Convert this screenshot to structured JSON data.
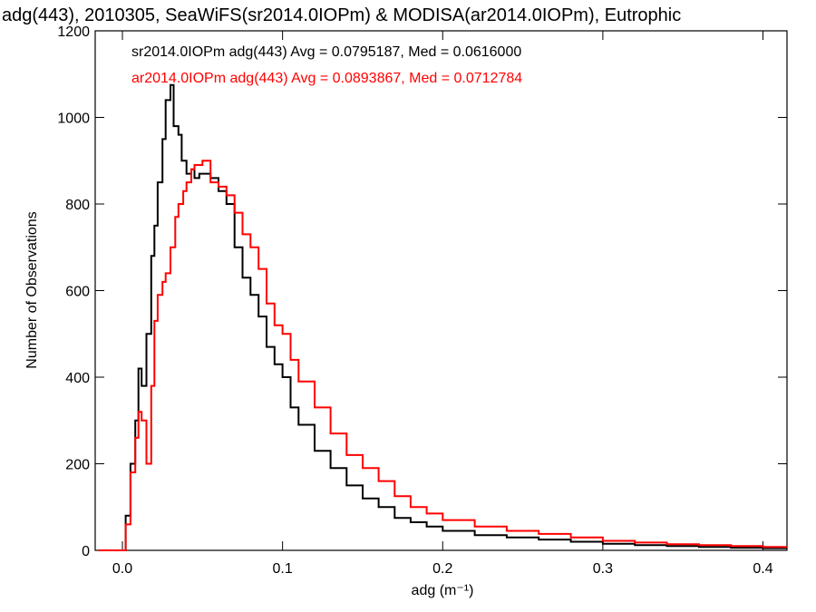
{
  "chart_data": {
    "type": "line",
    "title": "adg(443), 2010305, SeaWiFS(sr2014.0IOPm) & MODISA(ar2014.0IOPm), Eutrophic",
    "xlabel": "adg (m⁻¹)",
    "ylabel": "Number of Observations",
    "xlim": [
      -0.017,
      0.415
    ],
    "ylim": [
      0,
      1200
    ],
    "xticks": [
      0.0,
      0.1,
      0.2,
      0.3,
      0.4
    ],
    "xtick_labels": [
      "0.0",
      "0.1",
      "0.2",
      "0.3",
      "0.4"
    ],
    "yticks": [
      0,
      200,
      400,
      600,
      800,
      1000,
      1200
    ],
    "ytick_labels": [
      "0",
      "200",
      "400",
      "600",
      "800",
      "1000",
      "1200"
    ],
    "grid": false,
    "series": [
      {
        "name": "sr2014.0IOPm adg(443) Avg = 0.0795187, Med = 0.0616000",
        "color": "#000000",
        "x": [
          -0.015,
          0.0,
          0.002,
          0.005,
          0.008,
          0.01,
          0.012,
          0.015,
          0.018,
          0.02,
          0.022,
          0.025,
          0.027,
          0.03,
          0.032,
          0.035,
          0.037,
          0.04,
          0.043,
          0.045,
          0.048,
          0.05,
          0.055,
          0.06,
          0.065,
          0.07,
          0.075,
          0.08,
          0.085,
          0.09,
          0.095,
          0.1,
          0.105,
          0.11,
          0.12,
          0.13,
          0.14,
          0.15,
          0.16,
          0.17,
          0.18,
          0.19,
          0.2,
          0.22,
          0.24,
          0.26,
          0.28,
          0.3,
          0.32,
          0.34,
          0.36,
          0.38,
          0.4,
          0.415
        ],
        "values": [
          0,
          0,
          80,
          200,
          300,
          420,
          380,
          500,
          680,
          750,
          850,
          950,
          1040,
          1075,
          980,
          960,
          900,
          870,
          880,
          860,
          870,
          870,
          860,
          830,
          800,
          700,
          630,
          590,
          540,
          470,
          430,
          400,
          330,
          290,
          230,
          190,
          150,
          120,
          100,
          75,
          65,
          55,
          45,
          35,
          30,
          25,
          20,
          15,
          12,
          10,
          8,
          6,
          5,
          5
        ]
      },
      {
        "name": "ar2014.0IOPm adg(443) Avg = 0.0893867, Med = 0.0712784",
        "color": "#ff0000",
        "x": [
          -0.015,
          0.0,
          0.002,
          0.005,
          0.008,
          0.01,
          0.012,
          0.015,
          0.018,
          0.02,
          0.022,
          0.025,
          0.027,
          0.03,
          0.033,
          0.035,
          0.038,
          0.04,
          0.043,
          0.045,
          0.048,
          0.05,
          0.055,
          0.06,
          0.065,
          0.07,
          0.075,
          0.08,
          0.085,
          0.09,
          0.095,
          0.1,
          0.105,
          0.11,
          0.12,
          0.13,
          0.14,
          0.15,
          0.16,
          0.17,
          0.18,
          0.19,
          0.2,
          0.22,
          0.24,
          0.26,
          0.28,
          0.3,
          0.32,
          0.34,
          0.36,
          0.38,
          0.4,
          0.415
        ],
        "values": [
          0,
          0,
          60,
          180,
          260,
          320,
          300,
          200,
          380,
          530,
          590,
          620,
          640,
          700,
          770,
          800,
          830,
          850,
          880,
          890,
          890,
          900,
          850,
          840,
          820,
          780,
          730,
          700,
          650,
          570,
          520,
          500,
          440,
          390,
          330,
          270,
          220,
          190,
          160,
          125,
          100,
          85,
          70,
          55,
          45,
          38,
          30,
          22,
          18,
          14,
          12,
          10,
          8,
          8
        ]
      }
    ]
  }
}
